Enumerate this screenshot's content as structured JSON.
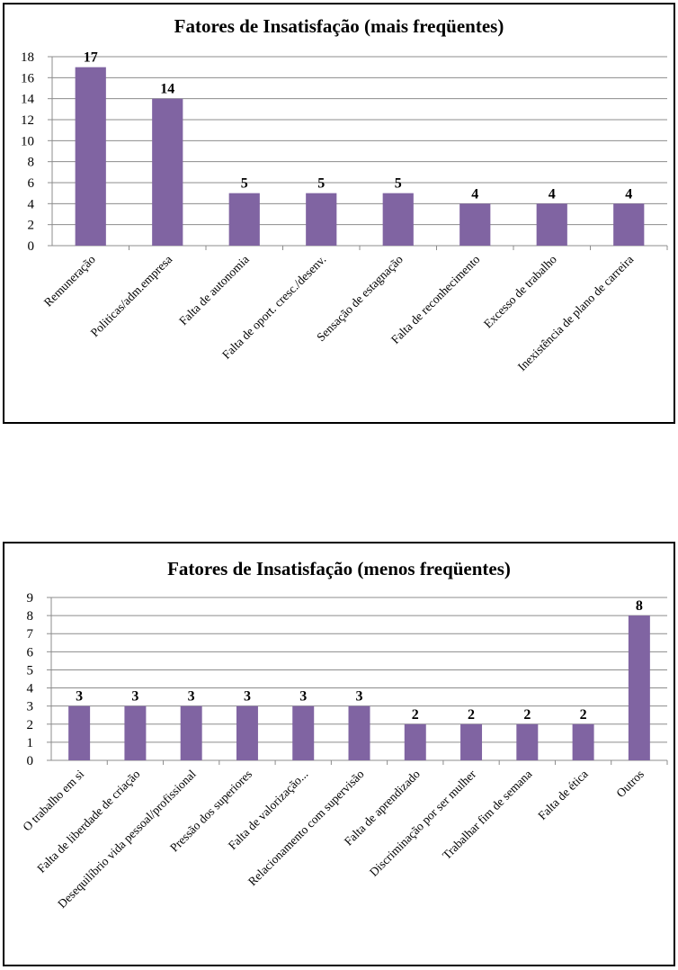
{
  "chart_data": [
    {
      "type": "bar",
      "title": "Fatores de Insatisfação (mais freqüentes)",
      "categories": [
        "Remuneração",
        "Politicas/adm.empresa",
        "Falta de autonomia",
        "Falta de oport. cresc./desenv.",
        "Sensação de estagnação",
        "Falta de reconhecimento",
        "Excesso de trabalho",
        "Inexistência de plano de carreira"
      ],
      "values": [
        17,
        14,
        5,
        5,
        5,
        4,
        4,
        4
      ],
      "ylim": [
        0,
        18
      ],
      "yticks": [
        0,
        2,
        4,
        6,
        8,
        10,
        12,
        14,
        16,
        18
      ],
      "grid": true,
      "bar_color": "#8064A2",
      "data_labels": true
    },
    {
      "type": "bar",
      "title": "Fatores de Insatisfação (menos freqüentes)",
      "categories": [
        "O trabalho em si",
        "Falta de liberdade de criação",
        "Desequilíbrio vida pessoal/profissional",
        "Pressão dos superiores",
        "Falta de valorização...",
        "Relacionamento com supervisão",
        "Falta de aprendizado",
        "Discriminação por ser mulher",
        "Trabalhar fim de semana",
        "Falta de ética",
        "Outros"
      ],
      "values": [
        3,
        3,
        3,
        3,
        3,
        3,
        2,
        2,
        2,
        2,
        8
      ],
      "ylim": [
        0,
        9
      ],
      "yticks": [
        0,
        1,
        2,
        3,
        4,
        5,
        6,
        7,
        8,
        9
      ],
      "grid": true,
      "bar_color": "#8064A2",
      "data_labels": true
    }
  ]
}
